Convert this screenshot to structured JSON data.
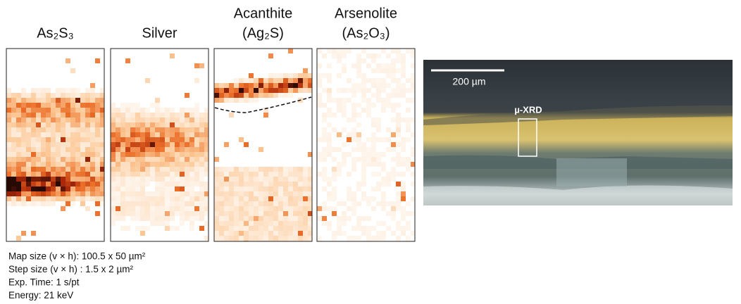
{
  "panels": [
    {
      "title": [
        "As₂S₃"
      ]
    },
    {
      "title": [
        "Silver"
      ]
    },
    {
      "title": [
        "Acanthite",
        "(Ag₂S)"
      ]
    },
    {
      "title": [
        "Arsenolite",
        "(As₂O₃)"
      ]
    }
  ],
  "notes": [
    "Map size (v × h): 100.5 x 50 µm²",
    "Step size (v × h) : 1.5 x 2 µm²",
    "Exp. Time: 1 s/pt",
    "Energy: 21 keV"
  ],
  "photo": {
    "scale_bar": "200 µm",
    "marker": "µ-XRD"
  }
}
